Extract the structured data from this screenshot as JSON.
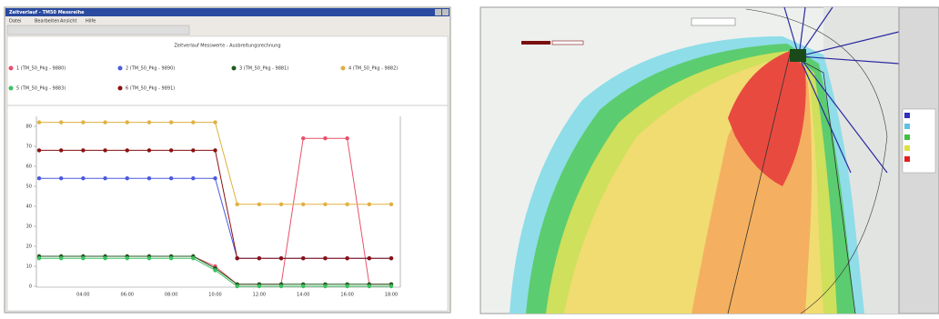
{
  "window_title": "Zeitverlauf - TM50 Messreihe",
  "menu": [
    "Datei",
    "Bearbeiten",
    "Ansicht",
    "Hilfe"
  ],
  "chart_data": {
    "type": "line",
    "title": "Zeitverlauf Messwerte - Ausbreitungsrechnung",
    "categories": [
      null,
      null,
      "04:00",
      null,
      "06:00",
      null,
      "08:00",
      null,
      "10:00",
      null,
      "12:00",
      null,
      "14:00",
      null,
      "16:00",
      null,
      "18:00"
    ],
    "ylim": [
      0,
      85
    ],
    "yticks": [
      0,
      10,
      20,
      30,
      40,
      50,
      60,
      70,
      80
    ],
    "series": [
      {
        "name": "1 (TM_50_Pkg - 9880)",
        "color": "#e8506a",
        "values": [
          15,
          15,
          15,
          15,
          15,
          15,
          15,
          15,
          10,
          1,
          1,
          1,
          74,
          74,
          74,
          1,
          1
        ]
      },
      {
        "name": "2 (TM_50_Pkg - 9890)",
        "color": "#4a58e0",
        "values": [
          54,
          54,
          54,
          54,
          54,
          54,
          54,
          54,
          54,
          14,
          14,
          14,
          14,
          14,
          14,
          14,
          14
        ]
      },
      {
        "name": "3 (TM_50_Pkg - 9881)",
        "color": "#1f5a1f",
        "values": [
          15,
          15,
          15,
          15,
          15,
          15,
          15,
          15,
          9,
          1,
          1,
          1,
          1,
          1,
          1,
          1,
          1
        ]
      },
      {
        "name": "4 (TM_50_Pkg - 9882)",
        "color": "#e0b040",
        "values": [
          82,
          82,
          82,
          82,
          82,
          82,
          82,
          82,
          82,
          41,
          41,
          41,
          41,
          41,
          41,
          41,
          41
        ]
      },
      {
        "name": "5 (TM_50_Pkg - 9883)",
        "color": "#3cc060",
        "values": [
          14,
          14,
          14,
          14,
          14,
          14,
          14,
          14,
          8,
          0,
          0,
          0,
          0,
          0,
          0,
          0,
          0
        ]
      },
      {
        "name": "6 (TM_50_Pkg - 9891)",
        "color": "#8a1010",
        "values": [
          68,
          68,
          68,
          68,
          68,
          68,
          68,
          68,
          68,
          14,
          14,
          14,
          14,
          14,
          14,
          14,
          14
        ]
      }
    ]
  }
}
